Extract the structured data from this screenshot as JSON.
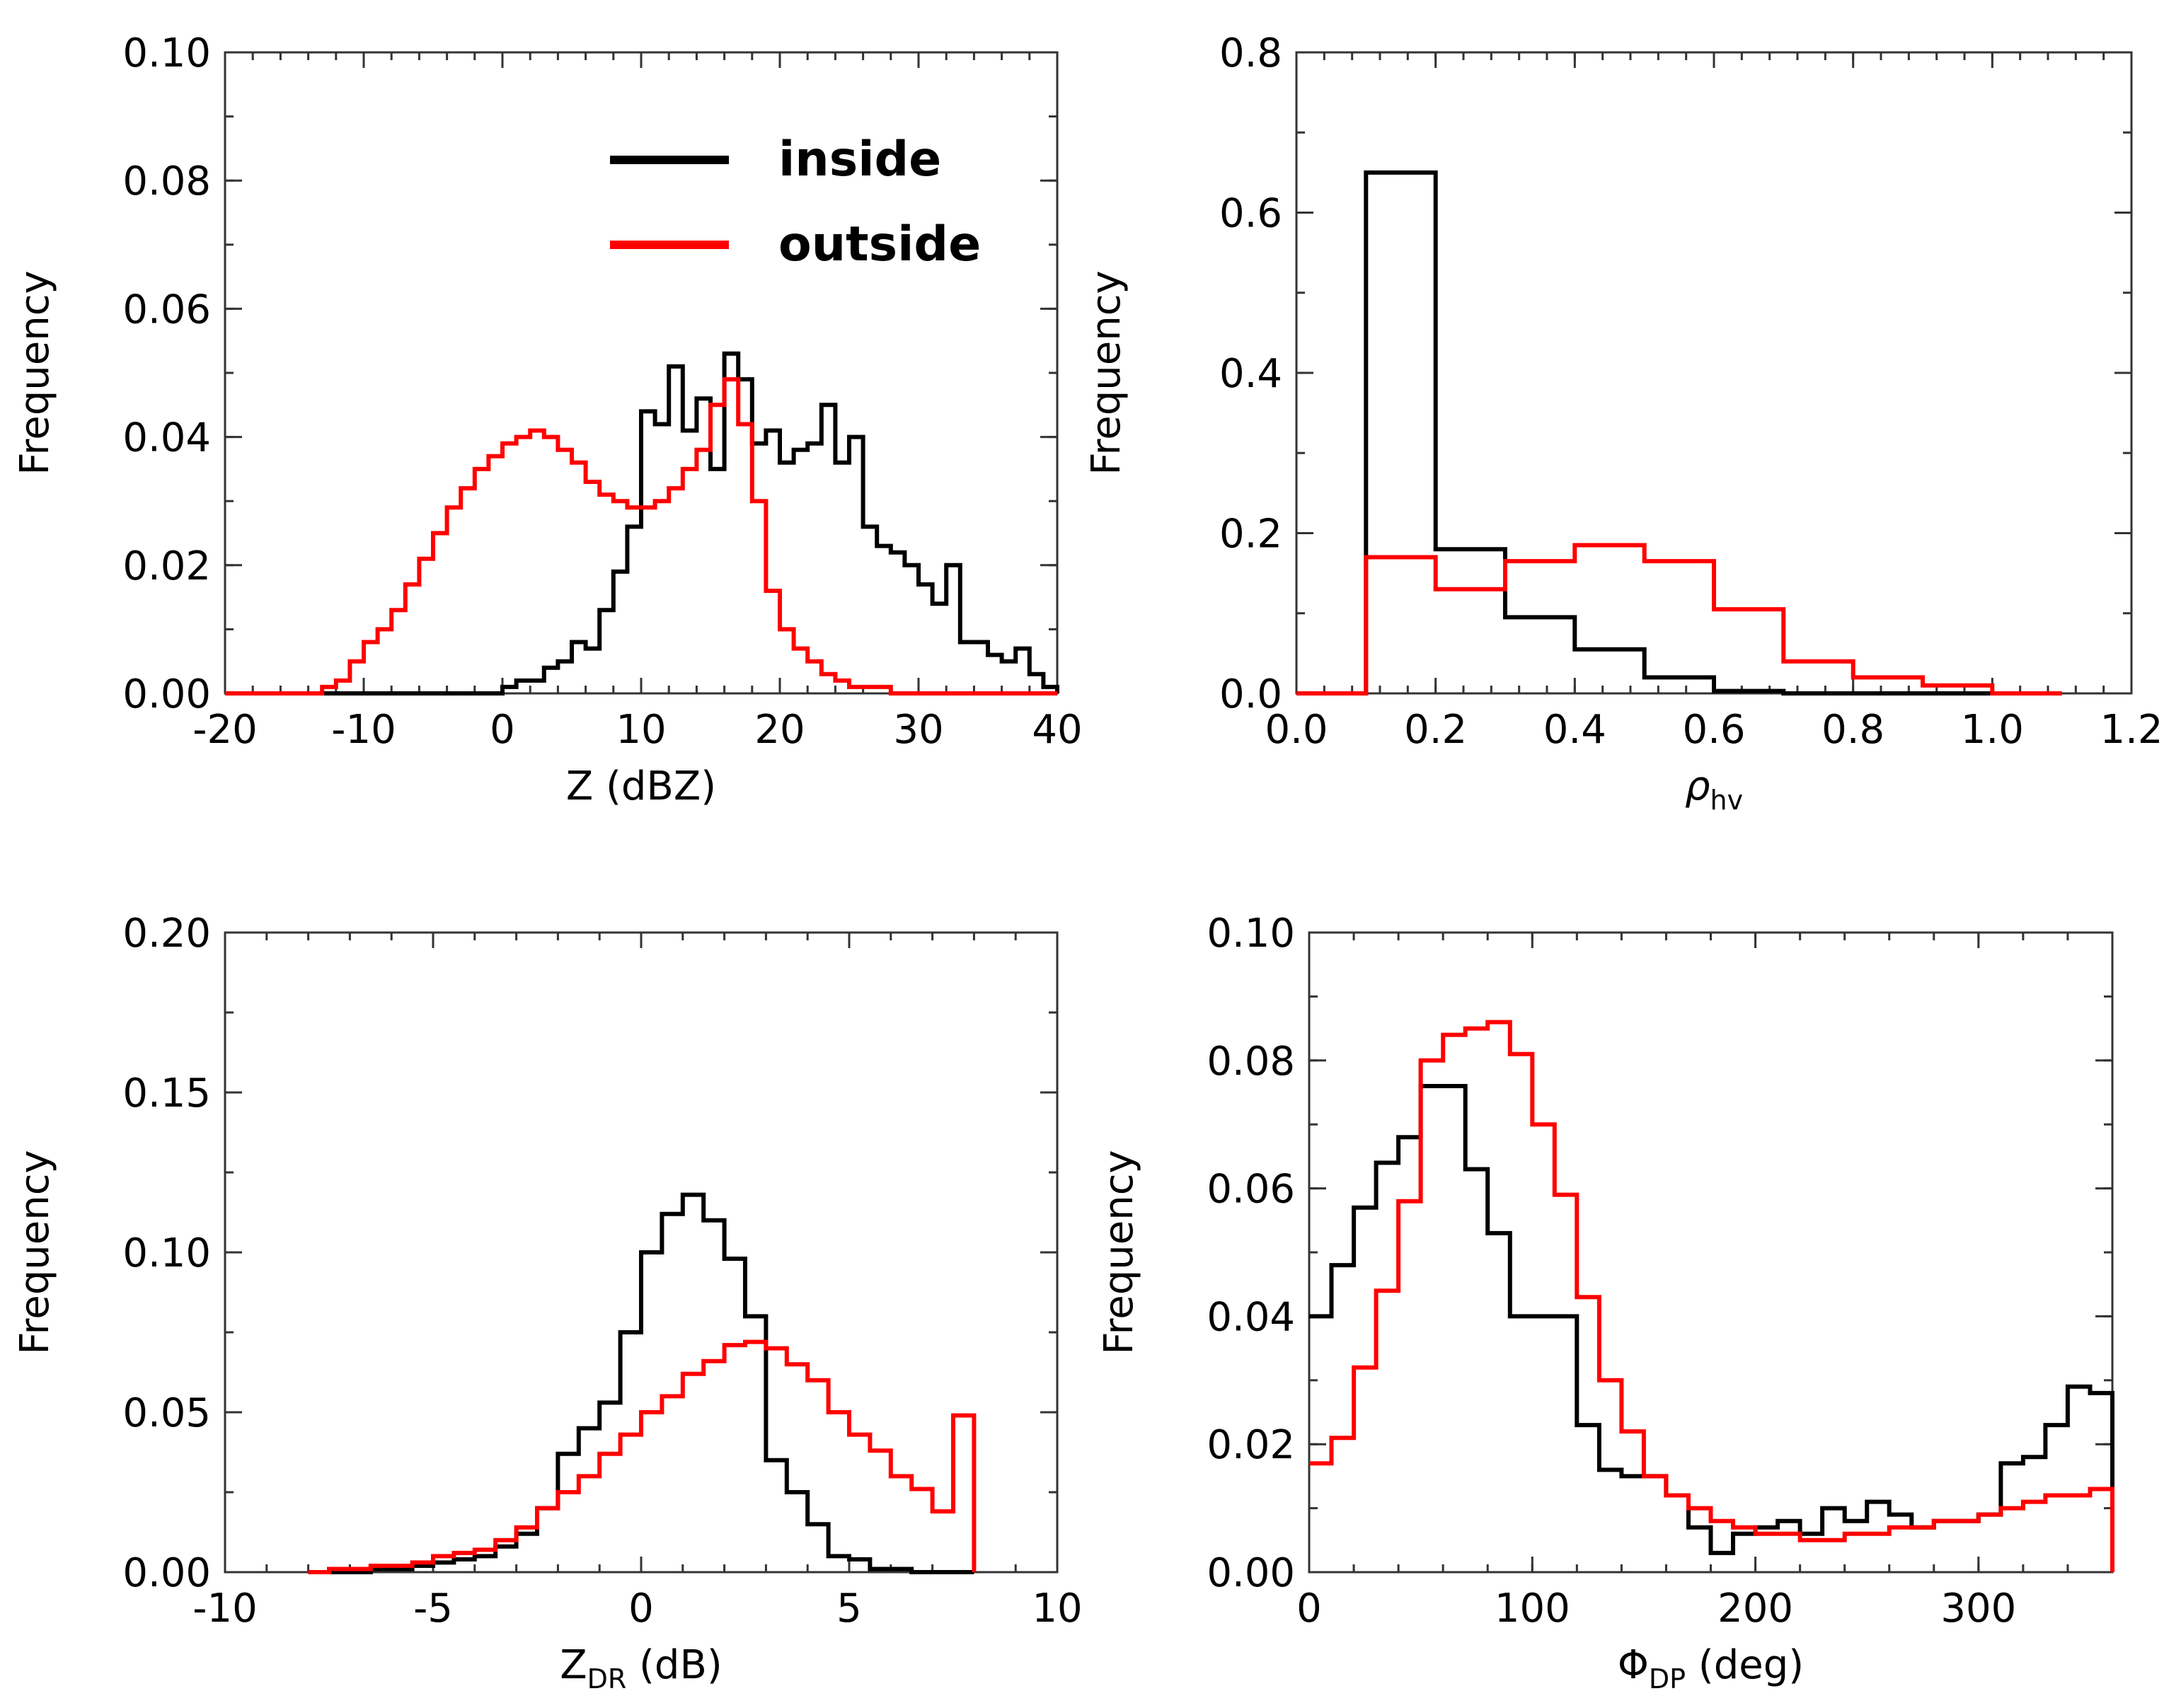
{
  "legend": [
    {
      "name": "inside",
      "color": "#000000"
    },
    {
      "name": "outside",
      "color": "#ff0000"
    }
  ],
  "chart_data": [
    {
      "type": "line",
      "id": "z",
      "xlabel": "Z (dBZ)",
      "ylabel": "Frequency",
      "xlim": [
        -20,
        40
      ],
      "ylim": [
        0,
        0.1
      ],
      "xticks": [
        "-20",
        "-10",
        "0",
        "10",
        "20",
        "30",
        "40"
      ],
      "yticks": [
        "0.00",
        "0.02",
        "0.04",
        "0.06",
        "0.08",
        "0.10"
      ],
      "bin_width": 1,
      "series": [
        {
          "name": "inside",
          "color": "#000000",
          "x": [
            -20,
            -19,
            -18,
            -17,
            -16,
            -15,
            -14,
            -13,
            -12,
            -11,
            -10,
            -9,
            -8,
            -7,
            -6,
            -5,
            -4,
            -3,
            -2,
            -1,
            0,
            1,
            2,
            3,
            4,
            5,
            6,
            7,
            8,
            9,
            10,
            11,
            12,
            13,
            14,
            15,
            16,
            17,
            18,
            19,
            20,
            21,
            22,
            23,
            24,
            25,
            26,
            27,
            28,
            29,
            30,
            31,
            32,
            33,
            34,
            35,
            36,
            37,
            38,
            39
          ],
          "values": [
            0,
            0,
            0,
            0,
            0,
            0,
            0,
            0,
            0,
            0,
            0,
            0,
            0,
            0,
            0,
            0,
            0,
            0,
            0,
            0,
            0.001,
            0.002,
            0.002,
            0.004,
            0.005,
            0.008,
            0.007,
            0.013,
            0.019,
            0.026,
            0.044,
            0.042,
            0.051,
            0.041,
            0.046,
            0.035,
            0.053,
            0.049,
            0.039,
            0.041,
            0.036,
            0.038,
            0.039,
            0.045,
            0.036,
            0.04,
            0.026,
            0.023,
            0.022,
            0.02,
            0.017,
            0.014,
            0.02,
            0.008,
            0.008,
            0.006,
            0.005,
            0.007,
            0.003,
            0.001
          ]
        },
        {
          "name": "outside",
          "color": "#ff0000",
          "x": [
            -20,
            -19,
            -18,
            -17,
            -16,
            -15,
            -14,
            -13,
            -12,
            -11,
            -10,
            -9,
            -8,
            -7,
            -6,
            -5,
            -4,
            -3,
            -2,
            -1,
            0,
            1,
            2,
            3,
            4,
            5,
            6,
            7,
            8,
            9,
            10,
            11,
            12,
            13,
            14,
            15,
            16,
            17,
            18,
            19,
            20,
            21,
            22,
            23,
            24,
            25,
            26,
            27,
            28,
            29,
            30,
            31,
            32,
            33,
            34,
            35,
            36,
            37,
            38,
            39
          ],
          "values": [
            0,
            0,
            0,
            0,
            0,
            0,
            0,
            0.001,
            0.002,
            0.005,
            0.008,
            0.01,
            0.013,
            0.017,
            0.021,
            0.025,
            0.029,
            0.032,
            0.035,
            0.037,
            0.039,
            0.04,
            0.041,
            0.04,
            0.038,
            0.036,
            0.033,
            0.031,
            0.03,
            0.029,
            0.029,
            0.03,
            0.032,
            0.035,
            0.038,
            0.045,
            0.049,
            0.042,
            0.03,
            0.016,
            0.01,
            0.007,
            0.005,
            0.003,
            0.002,
            0.001,
            0.001,
            0.001,
            0,
            0,
            0,
            0,
            0,
            0,
            0,
            0,
            0,
            0,
            0,
            0
          ]
        }
      ]
    },
    {
      "type": "line",
      "id": "rho",
      "xlabel": "ρ",
      "xlabel_sub": "hv",
      "ylabel": "Frequency",
      "xlim": [
        0,
        1.2
      ],
      "ylim": [
        0,
        0.8
      ],
      "xticks": [
        "0.0",
        "0.2",
        "0.4",
        "0.6",
        "0.8",
        "1.0",
        "1.2"
      ],
      "yticks": [
        "0.0",
        "0.2",
        "0.4",
        "0.6",
        "0.8"
      ],
      "bin_width": 0.1,
      "series": [
        {
          "name": "inside",
          "color": "#000000",
          "x": [
            0.05,
            0.15,
            0.25,
            0.35,
            0.45,
            0.55,
            0.65,
            0.75,
            0.85,
            0.95,
            1.05
          ],
          "values": [
            0,
            0.65,
            0.18,
            0.095,
            0.055,
            0.02,
            0.003,
            0,
            0,
            0,
            0
          ]
        },
        {
          "name": "outside",
          "color": "#ff0000",
          "x": [
            0.05,
            0.15,
            0.25,
            0.35,
            0.45,
            0.55,
            0.65,
            0.75,
            0.85,
            0.95,
            1.05
          ],
          "values": [
            0,
            0.17,
            0.13,
            0.165,
            0.185,
            0.165,
            0.105,
            0.04,
            0.02,
            0.01,
            0
          ]
        }
      ]
    },
    {
      "type": "line",
      "id": "zdr",
      "xlabel": "Z",
      "xlabel_sub": "DR",
      "xlabel_tail": " (dB)",
      "ylabel": "Frequency",
      "xlim": [
        -10,
        10
      ],
      "ylim": [
        0,
        0.2
      ],
      "xticks": [
        "-10",
        "-5",
        "0",
        "5",
        "10"
      ],
      "yticks": [
        "0.00",
        "0.05",
        "0.10",
        "0.15",
        "0.20"
      ],
      "bin_width": 0.5,
      "series": [
        {
          "name": "inside",
          "color": "#000000",
          "x": [
            -8,
            -7.5,
            -7,
            -6.5,
            -6,
            -5.5,
            -5,
            -4.5,
            -4,
            -3.5,
            -3,
            -2.5,
            -2,
            -1.5,
            -1,
            -0.5,
            0,
            0.5,
            1,
            1.5,
            2,
            2.5,
            3,
            3.5,
            4,
            4.5,
            5,
            5.5,
            6,
            6.5,
            7,
            7.5
          ],
          "values": [
            0,
            0,
            0,
            0.001,
            0.001,
            0.002,
            0.003,
            0.004,
            0.005,
            0.008,
            0.012,
            0.02,
            0.037,
            0.045,
            0.053,
            0.075,
            0.1,
            0.112,
            0.118,
            0.11,
            0.098,
            0.08,
            0.035,
            0.025,
            0.015,
            0.005,
            0.004,
            0.001,
            0.001,
            0,
            0,
            0
          ]
        },
        {
          "name": "outside",
          "color": "#ff0000",
          "x": [
            -8,
            -7.5,
            -7,
            -6.5,
            -6,
            -5.5,
            -5,
            -4.5,
            -4,
            -3.5,
            -3,
            -2.5,
            -2,
            -1.5,
            -1,
            -0.5,
            0,
            0.5,
            1,
            1.5,
            2,
            2.5,
            3,
            3.5,
            4,
            4.5,
            5,
            5.5,
            6,
            6.5,
            7,
            7.5
          ],
          "values": [
            0,
            0.001,
            0.001,
            0.002,
            0.002,
            0.003,
            0.005,
            0.006,
            0.007,
            0.01,
            0.014,
            0.02,
            0.025,
            0.03,
            0.037,
            0.043,
            0.05,
            0.055,
            0.062,
            0.066,
            0.071,
            0.072,
            0.07,
            0.065,
            0.06,
            0.05,
            0.043,
            0.038,
            0.03,
            0.026,
            0.019,
            0.049
          ]
        }
      ]
    },
    {
      "type": "line",
      "id": "phidp",
      "xlabel": "Φ",
      "xlabel_sub": "DP",
      "xlabel_tail": " (deg)",
      "ylabel": "Frequency",
      "xlim": [
        0,
        360
      ],
      "ylim": [
        0,
        0.1
      ],
      "xticks": [
        "0",
        "100",
        "200",
        "300"
      ],
      "xtick_values": [
        0,
        100,
        200,
        300
      ],
      "yticks": [
        "0.00",
        "0.02",
        "0.04",
        "0.06",
        "0.08",
        "0.10"
      ],
      "bin_width": 10,
      "series": [
        {
          "name": "inside",
          "color": "#000000",
          "x": [
            0,
            10,
            20,
            30,
            40,
            50,
            60,
            70,
            80,
            90,
            100,
            110,
            120,
            130,
            140,
            150,
            160,
            170,
            180,
            190,
            200,
            210,
            220,
            230,
            240,
            250,
            260,
            270,
            280,
            290,
            300,
            310,
            320,
            330,
            340,
            350
          ],
          "values": [
            0.04,
            0.048,
            0.057,
            0.064,
            0.068,
            0.076,
            0.076,
            0.063,
            0.053,
            0.04,
            0.04,
            0.04,
            0.023,
            0.016,
            0.015,
            0.015,
            0.012,
            0.007,
            0.003,
            0.006,
            0.007,
            0.008,
            0.006,
            0.01,
            0.008,
            0.011,
            0.009,
            0.007,
            0.008,
            0.008,
            0.009,
            0.017,
            0.018,
            0.023,
            0.029,
            0.028
          ]
        },
        {
          "name": "outside",
          "color": "#ff0000",
          "x": [
            0,
            10,
            20,
            30,
            40,
            50,
            60,
            70,
            80,
            90,
            100,
            110,
            120,
            130,
            140,
            150,
            160,
            170,
            180,
            190,
            200,
            210,
            220,
            230,
            240,
            250,
            260,
            270,
            280,
            290,
            300,
            310,
            320,
            330,
            340,
            350
          ],
          "values": [
            0.017,
            0.021,
            0.032,
            0.044,
            0.058,
            0.08,
            0.084,
            0.085,
            0.086,
            0.081,
            0.07,
            0.059,
            0.043,
            0.03,
            0.022,
            0.015,
            0.012,
            0.01,
            0.008,
            0.007,
            0.006,
            0.006,
            0.005,
            0.005,
            0.006,
            0.006,
            0.007,
            0.007,
            0.008,
            0.008,
            0.009,
            0.01,
            0.011,
            0.012,
            0.012,
            0.013
          ]
        }
      ]
    }
  ]
}
